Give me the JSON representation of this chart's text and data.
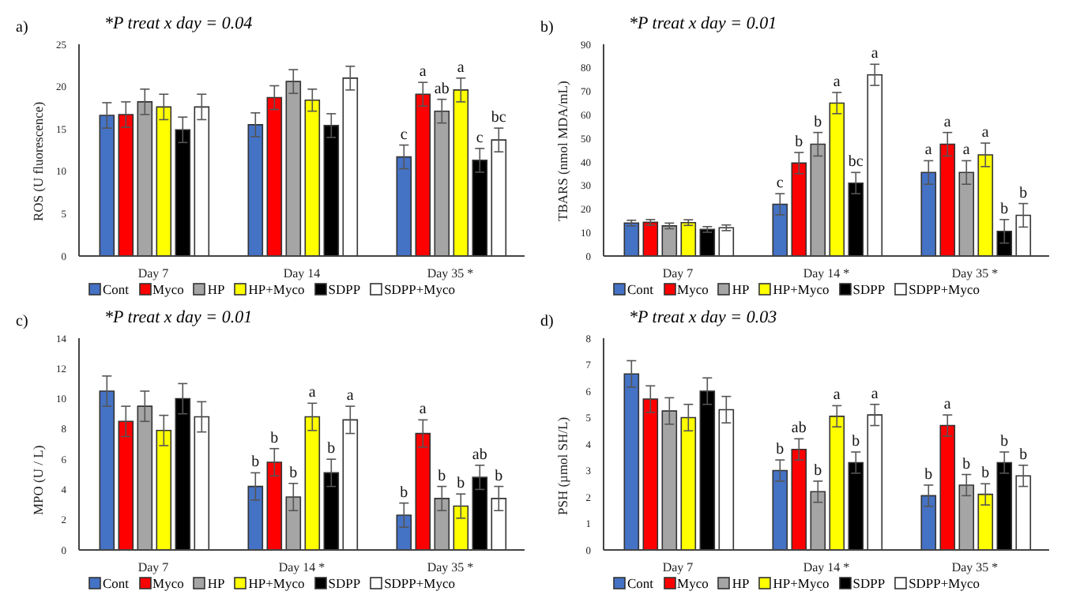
{
  "chart_data": [
    {
      "type": "bar",
      "title": "a)",
      "subtitle": "*P treat x day = 0.04",
      "ylabel": "ROS (U fluorescence)",
      "categories": [
        "Day 7",
        "Day 14",
        "Day 35 *"
      ],
      "ylim": [
        0,
        25
      ],
      "yticks": [
        0,
        5,
        10,
        15,
        20,
        25
      ],
      "grid": false,
      "legend": "bottom",
      "series": [
        {
          "name": "Cont",
          "color": "#4472c4",
          "values": [
            16.6,
            15.5,
            11.7
          ],
          "errors": [
            1.5,
            1.4,
            1.4
          ],
          "value_labels": [
            null,
            null,
            "c"
          ]
        },
        {
          "name": "Myco",
          "color": "#ff0000",
          "values": [
            16.7,
            18.7,
            19.1
          ],
          "errors": [
            1.5,
            1.4,
            1.4
          ],
          "value_labels": [
            null,
            null,
            "a"
          ]
        },
        {
          "name": "HP",
          "color": "#a5a5a5",
          "values": [
            18.2,
            20.6,
            17.1
          ],
          "errors": [
            1.5,
            1.4,
            1.4
          ],
          "value_labels": [
            null,
            null,
            "ab"
          ]
        },
        {
          "name": "HP+Myco",
          "color": "#ffff00",
          "values": [
            17.6,
            18.4,
            19.6
          ],
          "errors": [
            1.5,
            1.3,
            1.4
          ],
          "value_labels": [
            null,
            null,
            "a"
          ]
        },
        {
          "name": "SDPP",
          "color": "#000000",
          "values": [
            14.9,
            15.4,
            11.3
          ],
          "errors": [
            1.5,
            1.4,
            1.4
          ],
          "value_labels": [
            null,
            null,
            "c"
          ]
        },
        {
          "name": "SDPP+Myco",
          "color": "#ffffff",
          "values": [
            17.6,
            21.0,
            13.7
          ],
          "errors": [
            1.5,
            1.4,
            1.4
          ],
          "value_labels": [
            null,
            null,
            "bc"
          ]
        }
      ]
    },
    {
      "type": "bar",
      "title": "b)",
      "subtitle": "*P treat x day = 0.01",
      "ylabel": "TBARS (nmol MDA/mL)",
      "categories": [
        "Day 7",
        "Day 14 *",
        "Day 35 *"
      ],
      "ylim": [
        0,
        90
      ],
      "yticks": [
        0,
        10,
        20,
        30,
        40,
        50,
        60,
        70,
        80,
        90
      ],
      "grid": false,
      "legend": "bottom",
      "series": [
        {
          "name": "Cont",
          "color": "#4472c4",
          "values": [
            14,
            22,
            35.5
          ],
          "errors": [
            1.2,
            4.5,
            5
          ],
          "value_labels": [
            null,
            "c",
            "a"
          ]
        },
        {
          "name": "Myco",
          "color": "#ff0000",
          "values": [
            14.3,
            39.5,
            47.5
          ],
          "errors": [
            1.2,
            4.5,
            5
          ],
          "value_labels": [
            null,
            "b",
            "a"
          ]
        },
        {
          "name": "HP",
          "color": "#a5a5a5",
          "values": [
            12.8,
            47.5,
            35.5
          ],
          "errors": [
            1.2,
            5,
            5
          ],
          "value_labels": [
            null,
            "b",
            "a"
          ]
        },
        {
          "name": "HP+Myco",
          "color": "#ffff00",
          "values": [
            14.2,
            65,
            43
          ],
          "errors": [
            1.2,
            4.5,
            5
          ],
          "value_labels": [
            null,
            "a",
            "a"
          ]
        },
        {
          "name": "SDPP",
          "color": "#000000",
          "values": [
            11.3,
            31,
            10.5
          ],
          "errors": [
            1.2,
            4.5,
            5
          ],
          "value_labels": [
            null,
            "bc",
            "b"
          ]
        },
        {
          "name": "SDPP+Myco",
          "color": "#ffffff",
          "values": [
            12,
            77,
            17.3
          ],
          "errors": [
            1.2,
            4.5,
            5
          ],
          "value_labels": [
            null,
            "a",
            "b"
          ]
        }
      ]
    },
    {
      "type": "bar",
      "title": "c)",
      "subtitle": "*P treat x day = 0.01",
      "ylabel": "MPO (U / L)",
      "categories": [
        "Day 7",
        "Day 14 *",
        "Day 35 *"
      ],
      "ylim": [
        0,
        14
      ],
      "yticks": [
        0,
        2,
        4,
        6,
        8,
        10,
        12,
        14
      ],
      "grid": false,
      "legend": "bottom",
      "series": [
        {
          "name": "Cont",
          "color": "#4472c4",
          "values": [
            10.5,
            4.2,
            2.3
          ],
          "errors": [
            1,
            0.9,
            0.8
          ],
          "value_labels": [
            null,
            "b",
            "b"
          ]
        },
        {
          "name": "Myco",
          "color": "#ff0000",
          "values": [
            8.5,
            5.8,
            7.7
          ],
          "errors": [
            1,
            0.9,
            0.9
          ],
          "value_labels": [
            null,
            "b",
            "a"
          ]
        },
        {
          "name": "HP",
          "color": "#a5a5a5",
          "values": [
            9.5,
            3.5,
            3.4
          ],
          "errors": [
            1,
            0.9,
            0.8
          ],
          "value_labels": [
            null,
            "b",
            "b"
          ]
        },
        {
          "name": "HP+Myco",
          "color": "#ffff00",
          "values": [
            7.9,
            8.8,
            2.9
          ],
          "errors": [
            1,
            0.9,
            0.8
          ],
          "value_labels": [
            null,
            "a",
            "b"
          ]
        },
        {
          "name": "SDPP",
          "color": "#000000",
          "values": [
            10,
            5.1,
            4.8
          ],
          "errors": [
            1,
            0.9,
            0.8
          ],
          "value_labels": [
            null,
            "b",
            "ab"
          ]
        },
        {
          "name": "SDPP+Myco",
          "color": "#ffffff",
          "values": [
            8.8,
            8.6,
            3.4
          ],
          "errors": [
            1,
            0.9,
            0.8
          ],
          "value_labels": [
            null,
            "a",
            "b"
          ]
        }
      ]
    },
    {
      "type": "bar",
      "title": "d)",
      "subtitle": "*P treat x day = 0.03",
      "ylabel": "PSH (µmol SH/L)",
      "categories": [
        "Day 7",
        "Day 14 *",
        "Day 35 *"
      ],
      "ylim": [
        0,
        8
      ],
      "yticks": [
        0,
        1,
        2,
        3,
        4,
        5,
        6,
        7,
        8
      ],
      "grid": false,
      "legend": "bottom",
      "series": [
        {
          "name": "Cont",
          "color": "#4472c4",
          "values": [
            6.65,
            3.0,
            2.05
          ],
          "errors": [
            0.5,
            0.4,
            0.4
          ],
          "value_labels": [
            null,
            "b",
            "b"
          ]
        },
        {
          "name": "Myco",
          "color": "#ff0000",
          "values": [
            5.7,
            3.8,
            4.7
          ],
          "errors": [
            0.5,
            0.4,
            0.4
          ],
          "value_labels": [
            null,
            "ab",
            "a"
          ]
        },
        {
          "name": "HP",
          "color": "#a5a5a5",
          "values": [
            5.25,
            2.2,
            2.45
          ],
          "errors": [
            0.5,
            0.4,
            0.4
          ],
          "value_labels": [
            null,
            "b",
            "b"
          ]
        },
        {
          "name": "HP+Myco",
          "color": "#ffff00",
          "values": [
            5.0,
            5.05,
            2.1
          ],
          "errors": [
            0.5,
            0.4,
            0.4
          ],
          "value_labels": [
            null,
            "a",
            "b"
          ]
        },
        {
          "name": "SDPP",
          "color": "#000000",
          "values": [
            6.0,
            3.3,
            3.3
          ],
          "errors": [
            0.5,
            0.4,
            0.4
          ],
          "value_labels": [
            null,
            "b",
            "b"
          ]
        },
        {
          "name": "SDPP+Myco",
          "color": "#ffffff",
          "values": [
            5.3,
            5.1,
            2.8
          ],
          "errors": [
            0.5,
            0.4,
            0.4
          ],
          "value_labels": [
            null,
            "a",
            "b"
          ]
        }
      ]
    }
  ]
}
